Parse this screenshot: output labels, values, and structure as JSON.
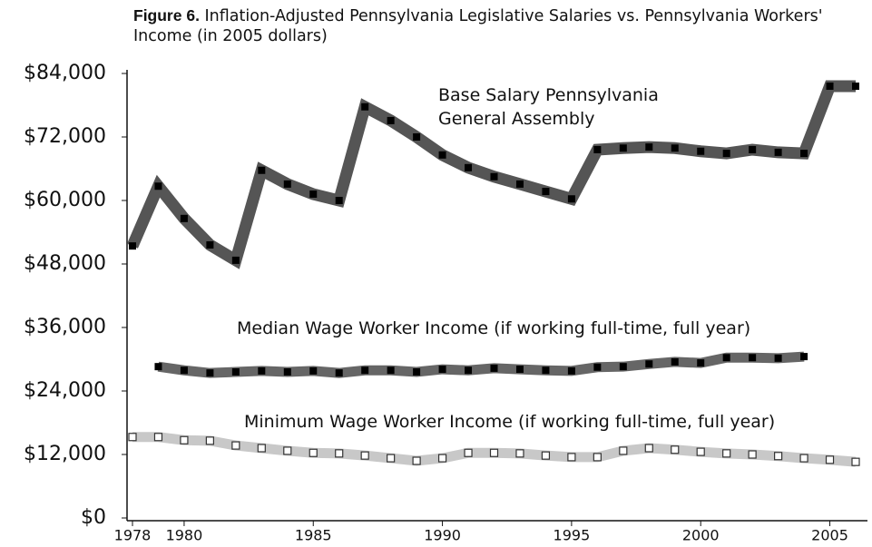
{
  "chart_data": {
    "type": "line",
    "figure_label": "Figure 6.",
    "title": "Inflation-Adjusted Pennsylvania Legislative Salaries vs. Pennsylvania Workers' Income (in 2005 dollars)",
    "x": [
      1978,
      1979,
      1980,
      1981,
      1982,
      1983,
      1984,
      1985,
      1986,
      1987,
      1988,
      1989,
      1990,
      1991,
      1992,
      1993,
      1994,
      1995,
      1996,
      1997,
      1998,
      1999,
      2000,
      2001,
      2002,
      2003,
      2004,
      2005,
      2006
    ],
    "xlim": [
      1978,
      2006
    ],
    "xticks": [
      1978,
      1980,
      1985,
      1990,
      1995,
      2000,
      2005
    ],
    "ylim": [
      0,
      84000
    ],
    "yticks": [
      {
        "value": 0,
        "label": "$0"
      },
      {
        "value": 12000,
        "label": "$12,000"
      },
      {
        "value": 24000,
        "label": "$24,000"
      },
      {
        "value": 36000,
        "label": "$36,000"
      },
      {
        "value": 48000,
        "label": "$48,000"
      },
      {
        "value": 60000,
        "label": "$60,000"
      },
      {
        "value": 72000,
        "label": "$72,000"
      },
      {
        "value": 84000,
        "label": "$84,000"
      }
    ],
    "grid": false,
    "series": [
      {
        "name": "Base Salary Pennsylvania General Assembly",
        "color": "#555555",
        "marker_color": "#000000",
        "values": [
          51400,
          62700,
          56600,
          51600,
          48700,
          65700,
          63100,
          61200,
          60000,
          77700,
          75100,
          72000,
          68600,
          66200,
          64500,
          63100,
          61700,
          60300,
          69600,
          69900,
          70100,
          69900,
          69300,
          68900,
          69600,
          69100,
          68900,
          81600,
          81600
        ]
      },
      {
        "name": "Median Wage Worker Income (if working full-time, full year)",
        "color": "#666666",
        "marker_color": "#000000",
        "values": [
          null,
          28600,
          27900,
          27400,
          27600,
          27800,
          27600,
          27800,
          27400,
          27900,
          27900,
          27600,
          28100,
          27900,
          28300,
          28100,
          27900,
          27800,
          28500,
          28600,
          29100,
          29500,
          29300,
          30300,
          30300,
          30200,
          30500,
          null,
          null
        ]
      },
      {
        "name": "Minimum Wage Worker Income (if working full-time, full year)",
        "color": "#c8c8c8",
        "marker_color": "#ffffff",
        "values": [
          15300,
          15300,
          14700,
          14600,
          13700,
          13200,
          12700,
          12300,
          12200,
          11800,
          11300,
          10800,
          11300,
          12300,
          12300,
          12200,
          11800,
          11500,
          11500,
          12700,
          13200,
          12900,
          12500,
          12200,
          12000,
          11700,
          11300,
          11000,
          10600
        ]
      }
    ]
  }
}
